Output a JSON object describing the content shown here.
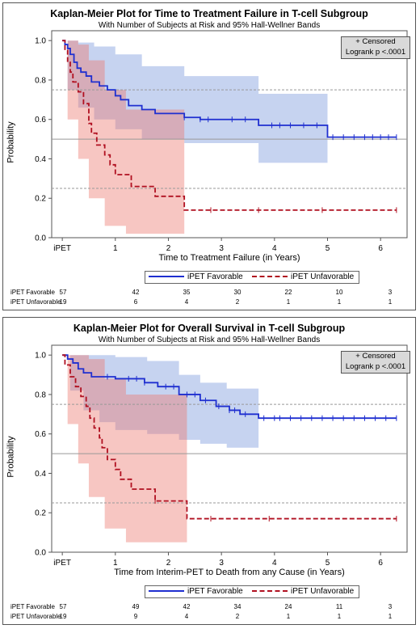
{
  "chart_data": [
    {
      "type": "line",
      "title": "Kaplan-Meier Plot for Time to Treatment Failure in T-cell Subgroup",
      "subtitle": "With Number of Subjects at Risk and 95% Hall-Wellner Bands",
      "xlabel": "Time to Treatment Failure (in Years)",
      "ylabel": "Probability",
      "xlim": [
        -0.2,
        6.5
      ],
      "ylim": [
        0,
        1.05
      ],
      "x_tick_labels": [
        "iPET",
        "1",
        "2",
        "3",
        "4",
        "5",
        "6"
      ],
      "y_tick_labels": [
        "0.0",
        "0.2",
        "0.4",
        "0.6",
        "0.8",
        "1.0"
      ],
      "reference_lines": [
        0.25,
        0.5,
        0.75
      ],
      "inset": [
        "+ Censored",
        "Logrank p <.0001"
      ],
      "series": [
        {
          "name": "iPET Favorable",
          "color": "#1f2fd0",
          "style": "solid",
          "steps": [
            [
              0,
              1.0
            ],
            [
              0.05,
              0.98
            ],
            [
              0.1,
              0.96
            ],
            [
              0.15,
              0.93
            ],
            [
              0.22,
              0.89
            ],
            [
              0.28,
              0.86
            ],
            [
              0.35,
              0.84
            ],
            [
              0.45,
              0.82
            ],
            [
              0.55,
              0.79
            ],
            [
              0.7,
              0.77
            ],
            [
              0.85,
              0.75
            ],
            [
              1.0,
              0.72
            ],
            [
              1.1,
              0.7
            ],
            [
              1.25,
              0.67
            ],
            [
              1.5,
              0.65
            ],
            [
              1.75,
              0.63
            ],
            [
              2.3,
              0.61
            ],
            [
              2.6,
              0.6
            ],
            [
              3.7,
              0.57
            ],
            [
              5.0,
              0.51
            ],
            [
              6.3,
              0.51
            ]
          ],
          "band_steps": [
            [
              0,
              1.0,
              1.0
            ],
            [
              0.1,
              1.0,
              0.75
            ],
            [
              0.3,
              0.99,
              0.66
            ],
            [
              0.6,
              0.97,
              0.6
            ],
            [
              1.0,
              0.93,
              0.55
            ],
            [
              1.5,
              0.87,
              0.5
            ],
            [
              2.3,
              0.82,
              0.48
            ],
            [
              3.7,
              0.73,
              0.38
            ],
            [
              5.0,
              0.73,
              0.38
            ]
          ],
          "censored_x": [
            2.3,
            2.6,
            2.75,
            3.2,
            3.45,
            3.95,
            4.1,
            4.3,
            4.55,
            4.8,
            5.1,
            5.3,
            5.5,
            5.7,
            5.85,
            6.0,
            6.15,
            6.3
          ]
        },
        {
          "name": "iPET Unfavorable",
          "color": "#b01020",
          "style": "dashed",
          "steps": [
            [
              0,
              1.0
            ],
            [
              0.05,
              0.95
            ],
            [
              0.1,
              0.89
            ],
            [
              0.15,
              0.84
            ],
            [
              0.2,
              0.79
            ],
            [
              0.3,
              0.74
            ],
            [
              0.4,
              0.68
            ],
            [
              0.5,
              0.58
            ],
            [
              0.55,
              0.53
            ],
            [
              0.65,
              0.47
            ],
            [
              0.8,
              0.42
            ],
            [
              0.9,
              0.37
            ],
            [
              1.0,
              0.32
            ],
            [
              1.3,
              0.26
            ],
            [
              1.75,
              0.21
            ],
            [
              2.3,
              0.14
            ],
            [
              6.3,
              0.14
            ]
          ],
          "band_steps": [
            [
              0,
              1.0,
              1.0
            ],
            [
              0.1,
              1.0,
              0.6
            ],
            [
              0.3,
              0.98,
              0.4
            ],
            [
              0.5,
              0.9,
              0.2
            ],
            [
              0.8,
              0.75,
              0.06
            ],
            [
              1.2,
              0.65,
              0.02
            ],
            [
              2.3,
              0.65,
              0.02
            ]
          ],
          "censored_x": [
            2.8,
            3.7,
            4.9,
            6.3
          ]
        }
      ],
      "risk_table": {
        "times": [
          0,
          1,
          2,
          3,
          4,
          5,
          6
        ],
        "rows": [
          {
            "label": "iPET Favorable",
            "values": [
              "57",
              "42",
              "35",
              "30",
              "22",
              "10",
              "3"
            ]
          },
          {
            "label": "iPET Unfavorable",
            "values": [
              "19",
              "6",
              "4",
              "2",
              "1",
              "1",
              "1"
            ]
          }
        ]
      }
    },
    {
      "type": "line",
      "title": "Kaplan-Meier Plot for Overall Survival in T-cell Subgroup",
      "subtitle": "With Number of Subjects at Risk and 95% Hall-Wellner Bands",
      "xlabel": "Time from Interim-PET to Death from any Cause (in Years)",
      "ylabel": "Probability",
      "xlim": [
        -0.2,
        6.5
      ],
      "ylim": [
        0,
        1.05
      ],
      "x_tick_labels": [
        "iPET",
        "1",
        "2",
        "3",
        "4",
        "5",
        "6"
      ],
      "y_tick_labels": [
        "0.0",
        "0.2",
        "0.4",
        "0.6",
        "0.8",
        "1.0"
      ],
      "reference_lines": [
        0.25,
        0.5,
        0.75
      ],
      "inset": [
        "+ Censored",
        "Logrank p <.0001"
      ],
      "series": [
        {
          "name": "iPET Favorable",
          "color": "#1f2fd0",
          "style": "solid",
          "steps": [
            [
              0,
              1.0
            ],
            [
              0.1,
              0.98
            ],
            [
              0.2,
              0.96
            ],
            [
              0.3,
              0.93
            ],
            [
              0.4,
              0.91
            ],
            [
              0.55,
              0.89
            ],
            [
              1.0,
              0.88
            ],
            [
              1.55,
              0.86
            ],
            [
              1.8,
              0.84
            ],
            [
              2.2,
              0.8
            ],
            [
              2.6,
              0.77
            ],
            [
              2.9,
              0.74
            ],
            [
              3.15,
              0.72
            ],
            [
              3.35,
              0.7
            ],
            [
              3.7,
              0.68
            ],
            [
              6.3,
              0.68
            ]
          ],
          "band_steps": [
            [
              0,
              1.0,
              1.0
            ],
            [
              0.15,
              1.0,
              0.82
            ],
            [
              0.4,
              1.0,
              0.72
            ],
            [
              0.7,
              1.0,
              0.66
            ],
            [
              1.0,
              0.99,
              0.62
            ],
            [
              1.6,
              0.97,
              0.6
            ],
            [
              2.2,
              0.9,
              0.57
            ],
            [
              2.6,
              0.86,
              0.55
            ],
            [
              3.1,
              0.83,
              0.53
            ],
            [
              3.7,
              0.83,
              0.53
            ]
          ],
          "censored_x": [
            0.85,
            1.25,
            1.4,
            1.55,
            1.95,
            2.1,
            2.35,
            2.5,
            2.7,
            2.95,
            3.15,
            3.25,
            3.45,
            3.8,
            4.0,
            4.1,
            4.3,
            4.5,
            4.7,
            4.9,
            5.1,
            5.3,
            5.5,
            5.7,
            5.9,
            6.1,
            6.3
          ]
        },
        {
          "name": "iPET Unfavorable",
          "color": "#b01020",
          "style": "dashed",
          "steps": [
            [
              0,
              1.0
            ],
            [
              0.05,
              0.95
            ],
            [
              0.15,
              0.89
            ],
            [
              0.25,
              0.84
            ],
            [
              0.35,
              0.79
            ],
            [
              0.45,
              0.74
            ],
            [
              0.52,
              0.68
            ],
            [
              0.6,
              0.63
            ],
            [
              0.7,
              0.58
            ],
            [
              0.75,
              0.53
            ],
            [
              0.85,
              0.47
            ],
            [
              1.0,
              0.42
            ],
            [
              1.1,
              0.37
            ],
            [
              1.3,
              0.32
            ],
            [
              1.75,
              0.26
            ],
            [
              2.35,
              0.17
            ],
            [
              6.3,
              0.17
            ]
          ],
          "band_steps": [
            [
              0,
              1.0,
              1.0
            ],
            [
              0.1,
              1.0,
              0.65
            ],
            [
              0.3,
              1.0,
              0.45
            ],
            [
              0.5,
              0.98,
              0.28
            ],
            [
              0.8,
              0.88,
              0.12
            ],
            [
              1.2,
              0.8,
              0.05
            ],
            [
              2.35,
              0.8,
              0.05
            ]
          ],
          "censored_x": [
            1.75,
            2.8,
            3.9,
            6.3
          ]
        }
      ],
      "risk_table": {
        "times": [
          0,
          1,
          2,
          3,
          4,
          5,
          6
        ],
        "rows": [
          {
            "label": "iPET Favorable",
            "values": [
              "57",
              "49",
              "42",
              "34",
              "24",
              "11",
              "3"
            ]
          },
          {
            "label": "iPET Unfavorable",
            "values": [
              "19",
              "9",
              "4",
              "2",
              "1",
              "1",
              "1"
            ]
          }
        ]
      }
    }
  ]
}
